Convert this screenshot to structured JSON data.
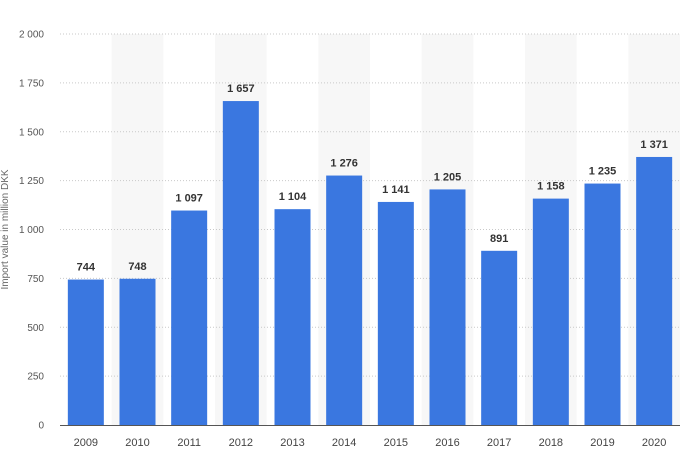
{
  "chart_data": {
    "type": "bar",
    "title": "",
    "xlabel": "",
    "ylabel": "Import value in million DKK",
    "ylim": [
      0,
      2000
    ],
    "yticks": [
      0,
      250,
      500,
      750,
      1000,
      1250,
      1500,
      1750,
      2000
    ],
    "ytick_labels": [
      "0",
      "250",
      "500",
      "750",
      "1 000",
      "1 250",
      "1 500",
      "1 750",
      "2 000"
    ],
    "grid": true,
    "legend": "none",
    "bar_color": "#3a77e0",
    "categories": [
      "2009",
      "2010",
      "2011",
      "2012",
      "2013",
      "2014",
      "2015",
      "2016",
      "2017",
      "2018",
      "2019",
      "2020"
    ],
    "values": [
      744,
      748,
      1097,
      1657,
      1104,
      1276,
      1141,
      1205,
      891,
      1158,
      1235,
      1371
    ],
    "value_labels": [
      "744",
      "748",
      "1 097",
      "1 657",
      "1 104",
      "1 276",
      "1 141",
      "1 205",
      "891",
      "1 158",
      "1 235",
      "1 371"
    ]
  }
}
